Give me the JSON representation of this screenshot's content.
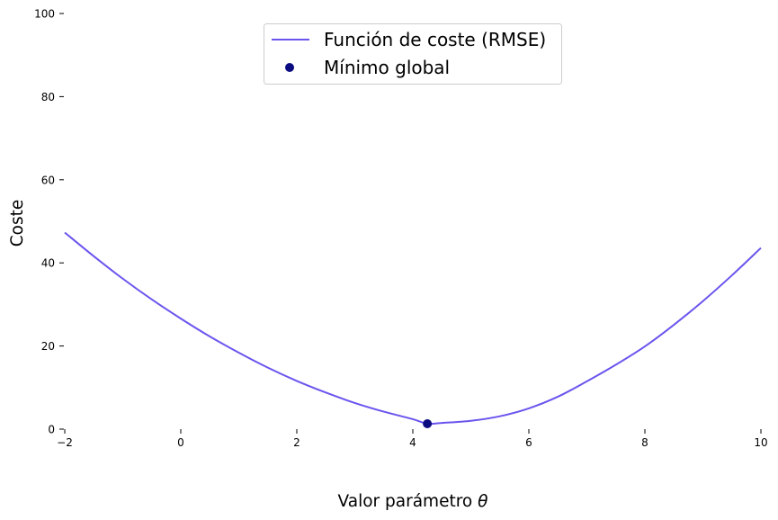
{
  "chart_data": {
    "type": "line",
    "title": "",
    "xlabel": "Valor parámetro",
    "xlabel_symbol": "θ",
    "ylabel": "Coste",
    "xlim": [
      -2,
      10
    ],
    "ylim": [
      0,
      100
    ],
    "x_ticks": [
      -2,
      0,
      2,
      4,
      6,
      8,
      10
    ],
    "y_ticks": [
      0,
      20,
      40,
      60,
      80,
      100
    ],
    "grid": false,
    "legend_position": "top-center",
    "series": [
      {
        "name": "Función de coste (RMSE)",
        "kind": "line",
        "color": "#6A55EE",
        "x": [
          -2,
          -1.5,
          -1,
          -0.5,
          0,
          0.5,
          1,
          1.5,
          2,
          2.5,
          3,
          3.5,
          4,
          4.25,
          4.5,
          5,
          5.5,
          6,
          6.5,
          7,
          7.5,
          8,
          8.5,
          9,
          9.5,
          10
        ],
        "y": [
          47.3,
          41.6,
          36.2,
          31.2,
          26.6,
          22.3,
          18.4,
          14.8,
          11.6,
          8.8,
          6.3,
          4.2,
          2.4,
          1.3,
          1.5,
          2.0,
          3.1,
          5.0,
          7.8,
          11.5,
          15.5,
          19.9,
          25.1,
          30.8,
          37.0,
          43.6
        ]
      },
      {
        "name": "Mínimo global",
        "kind": "scatter",
        "color": "#0B0B80",
        "x": [
          4.25
        ],
        "y": [
          1.3
        ]
      }
    ]
  }
}
